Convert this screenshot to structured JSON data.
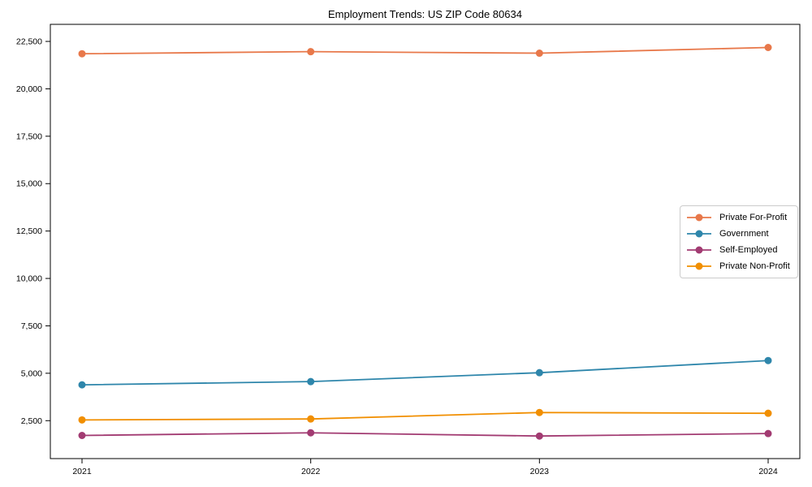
{
  "figure": {
    "background": "#ffffff",
    "axis_color": "#000000",
    "legend_border_color": "#cccccc"
  },
  "chart_data": {
    "type": "line",
    "title": "Employment Trends: US ZIP Code 80634",
    "xlabel": "",
    "ylabel": "",
    "x_categories": [
      "2021",
      "2022",
      "2023",
      "2024"
    ],
    "series": [
      {
        "name": "Private For-Profit",
        "color": "#e8784a",
        "values": [
          21850,
          21960,
          21880,
          22180
        ]
      },
      {
        "name": "Government",
        "color": "#2e86ab",
        "values": [
          4390,
          4560,
          5030,
          5670
        ]
      },
      {
        "name": "Self-Employed",
        "color": "#a23b72",
        "values": [
          1720,
          1860,
          1690,
          1820
        ]
      },
      {
        "name": "Private Non-Profit",
        "color": "#f18f01",
        "values": [
          2540,
          2590,
          2930,
          2890
        ]
      }
    ],
    "ylim": [
      500,
      23400
    ],
    "yticks": [
      2500,
      5000,
      7500,
      10000,
      12500,
      15000,
      17500,
      20000,
      22500
    ],
    "ytick_labels": [
      "2,500",
      "5,000",
      "7,500",
      "10,000",
      "12,500",
      "15,000",
      "17,500",
      "20,000",
      "22,500"
    ],
    "grid": false,
    "legend_position": "center-right",
    "marker": "circle",
    "line_width": 1.8,
    "marker_radius": 4.5
  }
}
